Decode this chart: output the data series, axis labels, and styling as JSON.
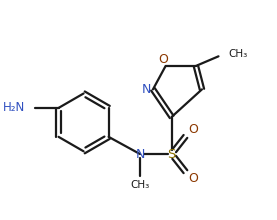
{
  "bg_color": "#ffffff",
  "line_color": "#1a1a1a",
  "bond_lw": 1.6,
  "n_color": "#3050c0",
  "o_color": "#8b3800",
  "s_color": "#8b7000",
  "figsize": [
    2.77,
    2.2
  ],
  "dpi": 100,
  "xlim": [
    0.0,
    9.5
  ],
  "ylim": [
    0.5,
    8.0
  ]
}
